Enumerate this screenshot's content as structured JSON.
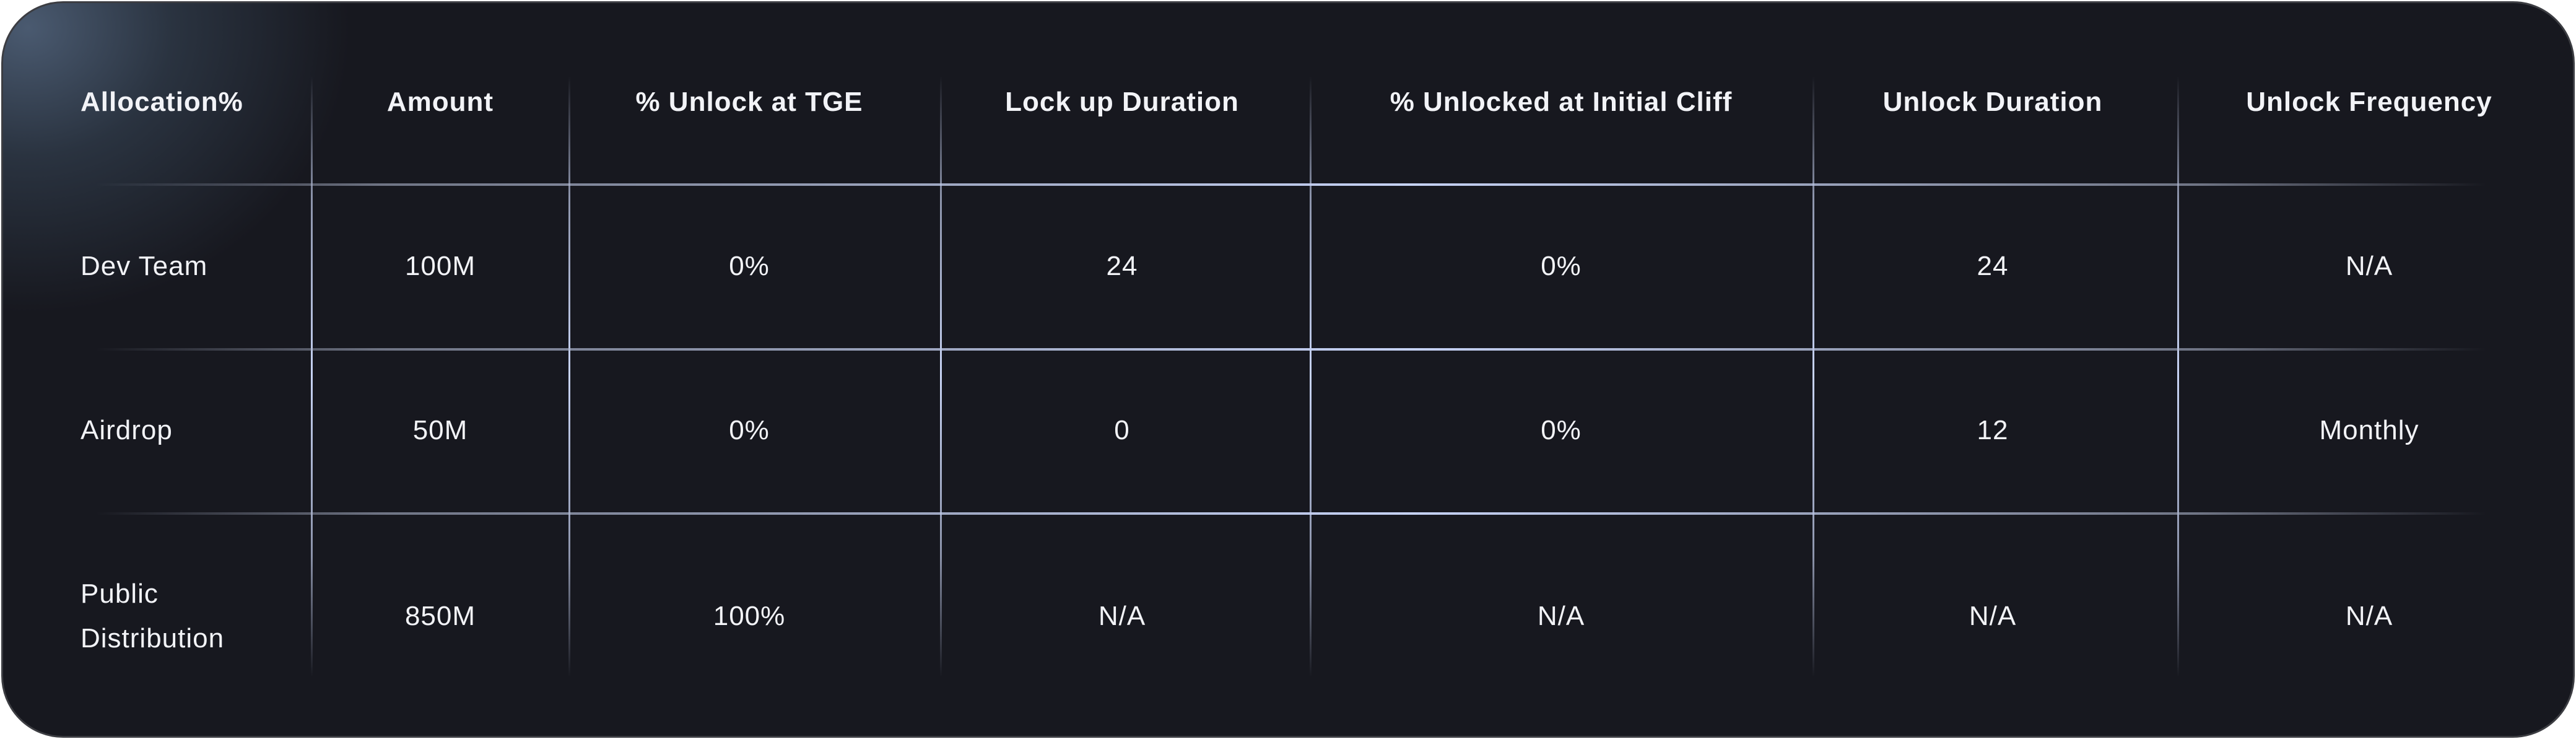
{
  "table": {
    "columns": [
      "Allocation%",
      "Amount",
      "% Unlock at TGE",
      "Lock up Duration",
      "% Unlocked at Initial Cliff",
      "Unlock Duration",
      "Unlock Frequency"
    ],
    "rows": [
      [
        "Dev Team",
        "100M",
        "0%",
        "24",
        "0%",
        "24",
        "N/A"
      ],
      [
        "Airdrop",
        "50M",
        "0%",
        "0",
        "0%",
        "12",
        "Monthly"
      ],
      [
        "Public Distribution",
        "850M",
        "100%",
        "N/A",
        "N/A",
        "N/A",
        "N/A"
      ]
    ]
  }
}
